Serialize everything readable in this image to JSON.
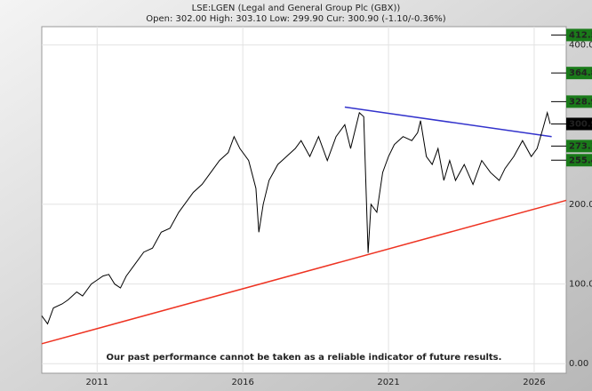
{
  "chart_data": {
    "type": "line",
    "title": "LSE:LGEN (Legal and General Group Plc (GBX))",
    "subtitle": "Open: 302.00 High: 303.10 Low: 299.90 Cur: 300.90 (-1.10/-0.36%)",
    "annotation": "Our past performance cannot be taken as a reliable indicator of future results.",
    "x": [
      2009.1,
      2009.3,
      2009.5,
      2009.8,
      2010.0,
      2010.3,
      2010.5,
      2010.8,
      2011.0,
      2011.2,
      2011.4,
      2011.6,
      2011.8,
      2012.0,
      2012.3,
      2012.6,
      2012.9,
      2013.2,
      2013.5,
      2013.8,
      2014.0,
      2014.3,
      2014.6,
      2014.9,
      2015.2,
      2015.5,
      2015.7,
      2015.9,
      2016.2,
      2016.45,
      2016.55,
      2016.7,
      2016.9,
      2017.2,
      2017.5,
      2017.8,
      2018.0,
      2018.3,
      2018.6,
      2018.9,
      2019.2,
      2019.5,
      2019.7,
      2020.0,
      2020.15,
      2020.3,
      2020.4,
      2020.6,
      2020.8,
      2021.0,
      2021.2,
      2021.5,
      2021.8,
      2022.0,
      2022.1,
      2022.3,
      2022.5,
      2022.7,
      2022.9,
      2023.1,
      2023.3,
      2023.6,
      2023.9,
      2024.2,
      2024.5,
      2024.8,
      2025.0,
      2025.3,
      2025.6,
      2025.9,
      2026.1,
      2026.3,
      2026.45,
      2026.55
    ],
    "series": [
      {
        "name": "LGEN",
        "color": "#000000",
        "values": [
          60,
          50,
          70,
          75,
          80,
          90,
          85,
          100,
          105,
          110,
          112,
          100,
          95,
          110,
          125,
          140,
          145,
          165,
          170,
          190,
          200,
          215,
          225,
          240,
          255,
          265,
          285,
          270,
          255,
          220,
          165,
          200,
          230,
          250,
          260,
          270,
          280,
          260,
          285,
          255,
          285,
          300,
          270,
          315,
          310,
          139,
          200,
          190,
          240,
          260,
          275,
          285,
          280,
          290,
          305,
          260,
          250,
          270,
          230,
          255,
          230,
          250,
          225,
          255,
          240,
          230,
          245,
          260,
          280,
          260,
          270,
          295,
          315,
          300.9
        ]
      }
    ],
    "trendlines": [
      {
        "color": "#3333cc",
        "x": [
          2019.5,
          2026.6
        ],
        "y": [
          322,
          285
        ]
      },
      {
        "color": "#ee3322",
        "x": [
          2009.1,
          2027.1
        ],
        "y": [
          25,
          205
        ]
      }
    ],
    "levels": [
      {
        "value": 412.5,
        "label": "412.50",
        "color": "#1a7a1a"
      },
      {
        "value": 364.8,
        "label": "364.80",
        "color": "#1a7a1a"
      },
      {
        "value": 328.9,
        "label": "328.90",
        "color": "#1a7a1a"
      },
      {
        "value": 300.9,
        "label": "300.90",
        "color": "#000000"
      },
      {
        "value": 273.1,
        "label": "273.10",
        "color": "#1a7a1a"
      },
      {
        "value": 255.4,
        "label": "255.40",
        "color": "#1a7a1a"
      }
    ],
    "xlim": [
      2009.1,
      2027.1
    ],
    "ylim": [
      -12,
      423
    ],
    "xticks": [
      2011,
      2016,
      2021,
      2026
    ],
    "yticks": [
      {
        "value": 0,
        "label": "0.00"
      },
      {
        "value": 100,
        "label": "100.00"
      },
      {
        "value": 200,
        "label": "200.00"
      },
      {
        "value": 400,
        "label": "400.00"
      }
    ],
    "grid": true
  }
}
